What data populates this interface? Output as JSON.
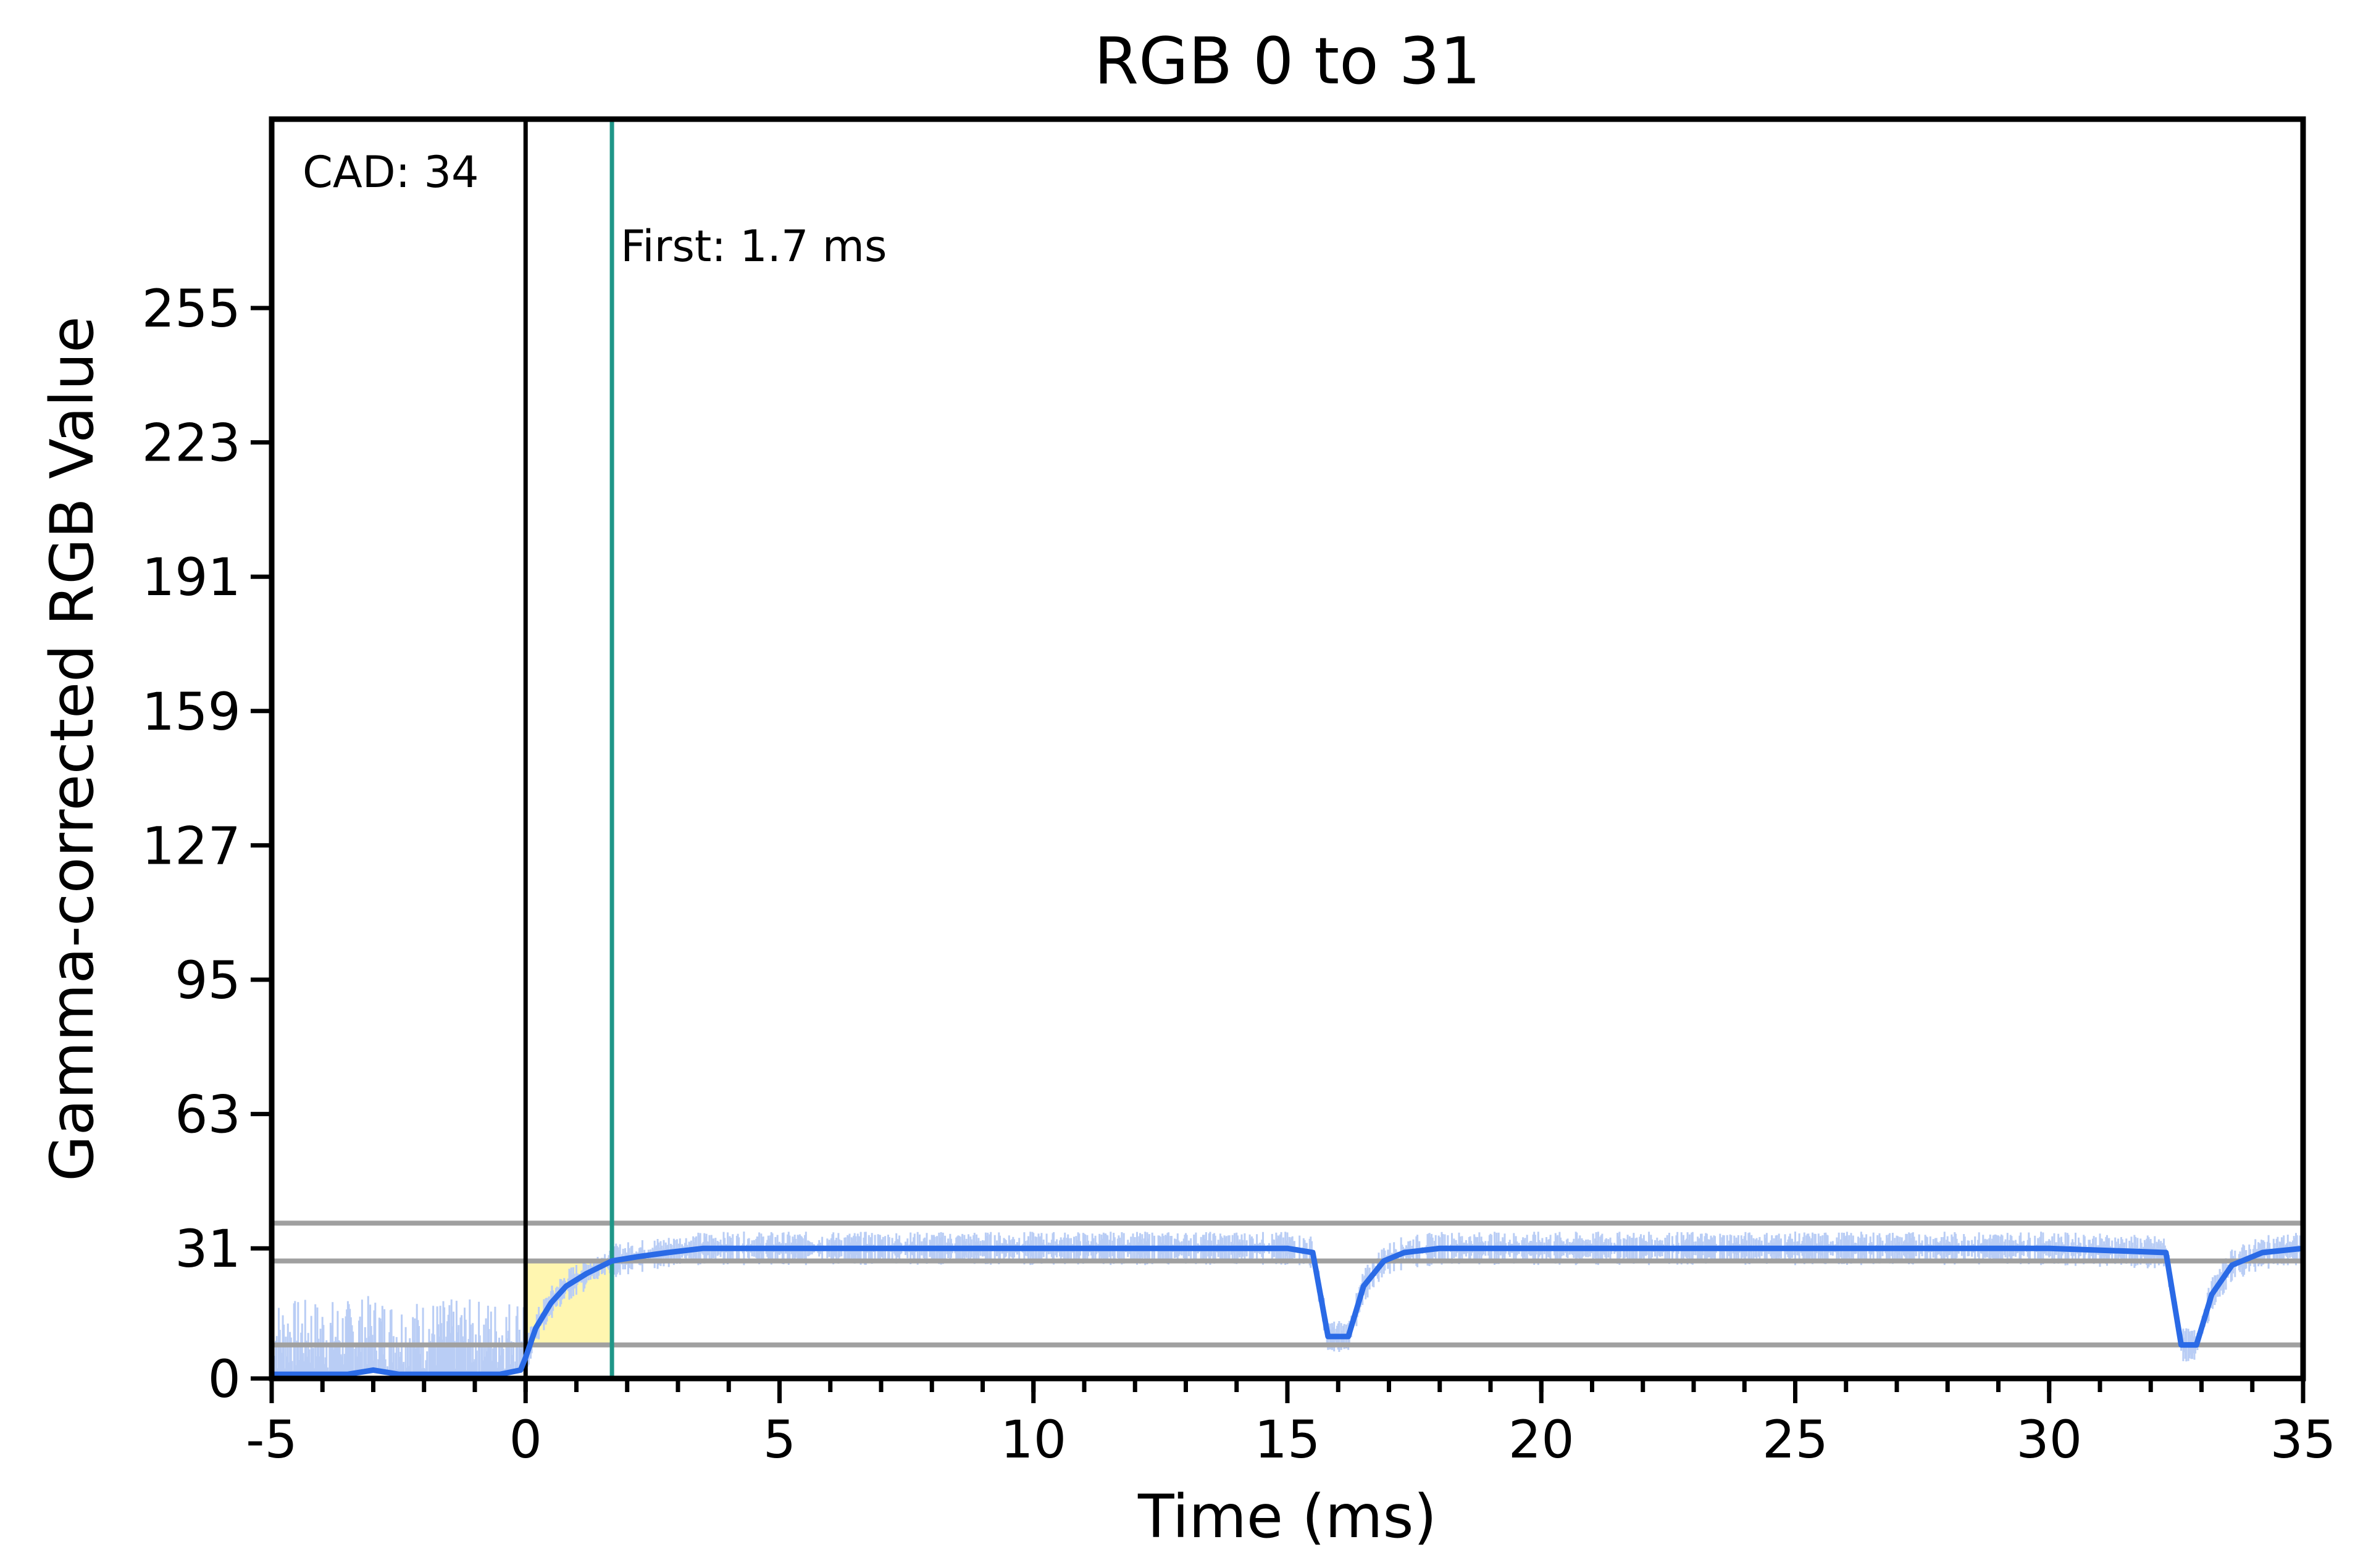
{
  "chart_data": {
    "type": "line",
    "title": "RGB 0 to 31",
    "xlabel": "Time (ms)",
    "ylabel": "Gamma-corrected RGB Value",
    "xlim": [
      -5,
      35
    ],
    "ylim": [
      0,
      300
    ],
    "x_ticks": [
      -5,
      0,
      5,
      10,
      15,
      20,
      25,
      30,
      35
    ],
    "x_tick_labels": [
      "-5",
      "0",
      "5",
      "10",
      "15",
      "20",
      "25",
      "30",
      "35"
    ],
    "x_minor_step": 1,
    "y_ticks": [
      0,
      31,
      63,
      95,
      127,
      159,
      191,
      223,
      255
    ],
    "y_tick_labels": [
      "0",
      "31",
      "63",
      "95",
      "127",
      "159",
      "191",
      "223",
      "255"
    ],
    "grid": false,
    "reference_lines": [
      {
        "y": 37
      },
      {
        "y": 28
      },
      {
        "y": 8
      }
    ],
    "vertical_lines": [
      {
        "x": 0,
        "color": "#000000"
      },
      {
        "x": 1.7,
        "color": "#1f9688"
      }
    ],
    "annotations": [
      {
        "text": "CAD: 34"
      },
      {
        "text": "First: 1.7 ms"
      }
    ],
    "shaded_region": {
      "x": [
        0,
        1.7
      ],
      "y_from": 8,
      "y_to": 28,
      "color": "#fff6b0"
    },
    "series": [
      {
        "color": "#2a6ae6",
        "x": [
          -5,
          -4,
          -3.5,
          -3,
          -2.5,
          -2,
          -1,
          -0.5,
          -0.1,
          0,
          0.2,
          0.5,
          0.8,
          1.2,
          1.7,
          2.2,
          2.8,
          3.5,
          5,
          10,
          15,
          15.5,
          15.8,
          16.2,
          16.5,
          16.9,
          17.3,
          18,
          20,
          25,
          30,
          32.3,
          32.6,
          32.9,
          33.2,
          33.6,
          34.2,
          35
        ],
        "y": [
          1,
          1,
          1,
          2,
          1,
          1,
          1,
          1,
          2,
          5,
          12,
          18,
          22,
          25,
          28,
          29,
          30,
          31,
          31,
          31,
          31,
          30,
          10,
          10,
          22,
          28,
          30,
          31,
          31,
          31,
          31,
          30,
          8,
          8,
          20,
          27,
          30,
          31
        ]
      }
    ]
  }
}
